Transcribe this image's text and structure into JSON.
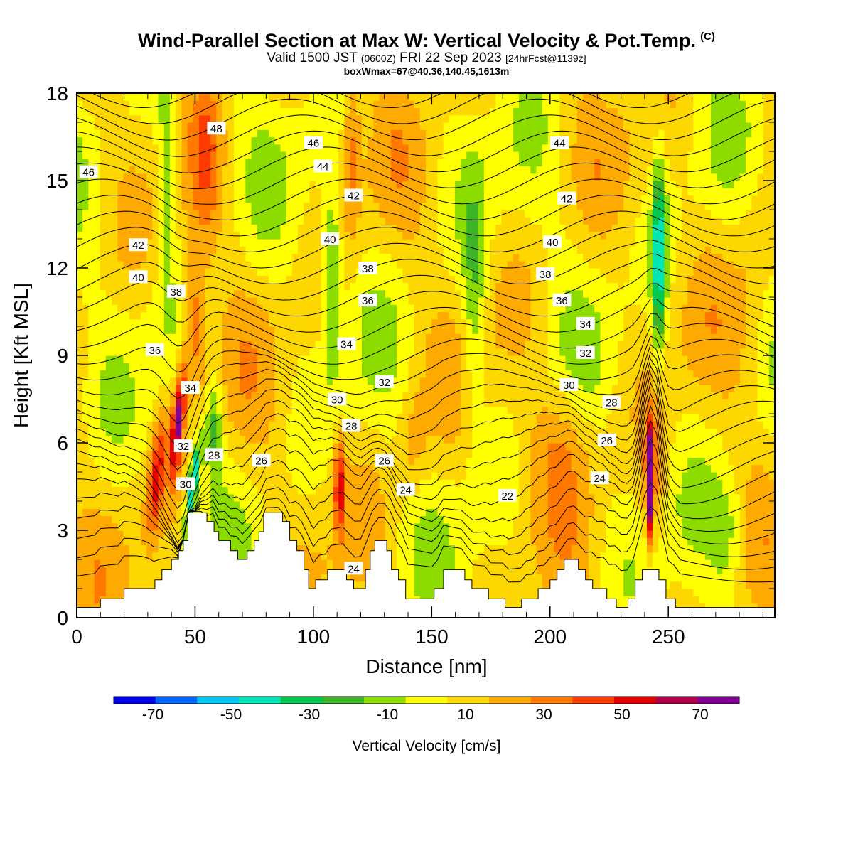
{
  "title": {
    "main": "Wind-Parallel Section at Max W: Vertical Velocity & Pot.Temp.",
    "main_mark": "(C)",
    "valid_prefix": "Valid 1500 JST",
    "valid_utc": "(0600Z)",
    "valid_date": "FRI 22 Sep 2023",
    "forecast": "[24hrFcst@1139z]",
    "box_info": "boxWmax=67@40.36,140.45,1613m"
  },
  "chart_data": {
    "type": "heatmap",
    "xlabel": "Distance [nm]",
    "ylabel": "Height [Kft MSL]",
    "xlim": [
      0,
      295
    ],
    "ylim": [
      0,
      18
    ],
    "x_ticks": [
      0,
      50,
      100,
      150,
      200,
      250
    ],
    "y_ticks": [
      0,
      3,
      6,
      9,
      12,
      15,
      18
    ],
    "colorbar": {
      "label": "Vertical Velocity [cm/s]",
      "range": [
        -80,
        80
      ],
      "step": 10,
      "tick_values": [
        -70,
        -50,
        -30,
        -10,
        10,
        30,
        50,
        70
      ],
      "colors": [
        "#0000f0",
        "#0064ff",
        "#00c8f5",
        "#00e6b4",
        "#00c850",
        "#3cb428",
        "#8cdc00",
        "#ffff00",
        "#ffd700",
        "#ffaa00",
        "#ff7800",
        "#ff3c00",
        "#e60000",
        "#b4004b",
        "#820096"
      ]
    },
    "terrain_kft": [
      [
        0,
        0.35
      ],
      [
        10,
        0.35
      ],
      [
        10,
        0.65
      ],
      [
        20,
        0.65
      ],
      [
        20,
        1.0
      ],
      [
        33,
        1.0
      ],
      [
        33,
        1.3
      ],
      [
        36,
        1.3
      ],
      [
        36,
        1.65
      ],
      [
        40,
        1.65
      ],
      [
        40,
        2.0
      ],
      [
        43,
        2.0
      ],
      [
        43,
        2.3
      ],
      [
        45,
        2.3
      ],
      [
        45,
        2.65
      ],
      [
        47,
        2.65
      ],
      [
        47,
        3.6
      ],
      [
        55,
        3.6
      ],
      [
        55,
        3.3
      ],
      [
        58,
        3.3
      ],
      [
        58,
        2.95
      ],
      [
        60,
        2.95
      ],
      [
        60,
        2.65
      ],
      [
        65,
        2.65
      ],
      [
        65,
        2.3
      ],
      [
        68,
        2.3
      ],
      [
        68,
        2.0
      ],
      [
        72,
        2.0
      ],
      [
        72,
        2.3
      ],
      [
        75,
        2.3
      ],
      [
        75,
        2.65
      ],
      [
        77,
        2.65
      ],
      [
        77,
        2.95
      ],
      [
        79,
        2.95
      ],
      [
        79,
        3.6
      ],
      [
        87,
        3.6
      ],
      [
        87,
        3.3
      ],
      [
        90,
        3.3
      ],
      [
        90,
        2.65
      ],
      [
        93,
        2.65
      ],
      [
        93,
        2.3
      ],
      [
        96,
        2.3
      ],
      [
        96,
        1.65
      ],
      [
        98,
        1.65
      ],
      [
        98,
        1.0
      ],
      [
        101,
        1.0
      ],
      [
        101,
        1.3
      ],
      [
        106,
        1.3
      ],
      [
        106,
        1.65
      ],
      [
        114,
        1.65
      ],
      [
        114,
        1.3
      ],
      [
        117,
        1.3
      ],
      [
        117,
        1.0
      ],
      [
        122,
        1.0
      ],
      [
        122,
        1.65
      ],
      [
        124,
        1.65
      ],
      [
        124,
        2.3
      ],
      [
        126,
        2.3
      ],
      [
        126,
        2.65
      ],
      [
        131,
        2.65
      ],
      [
        131,
        2.3
      ],
      [
        133,
        2.3
      ],
      [
        133,
        1.65
      ],
      [
        136,
        1.65
      ],
      [
        136,
        1.3
      ],
      [
        139,
        1.3
      ],
      [
        139,
        0.65
      ],
      [
        151,
        0.65
      ],
      [
        151,
        1.0
      ],
      [
        155,
        1.0
      ],
      [
        155,
        1.65
      ],
      [
        164,
        1.65
      ],
      [
        164,
        1.3
      ],
      [
        167,
        1.3
      ],
      [
        167,
        1.0
      ],
      [
        174,
        1.0
      ],
      [
        174,
        0.65
      ],
      [
        181,
        0.65
      ],
      [
        181,
        0.35
      ],
      [
        188,
        0.35
      ],
      [
        188,
        0.65
      ],
      [
        195,
        0.65
      ],
      [
        195,
        1.0
      ],
      [
        200,
        1.0
      ],
      [
        200,
        1.3
      ],
      [
        203,
        1.3
      ],
      [
        203,
        1.65
      ],
      [
        206,
        1.65
      ],
      [
        206,
        2.0
      ],
      [
        212,
        2.0
      ],
      [
        212,
        1.65
      ],
      [
        215,
        1.65
      ],
      [
        215,
        1.3
      ],
      [
        218,
        1.3
      ],
      [
        218,
        1.0
      ],
      [
        224,
        1.0
      ],
      [
        224,
        0.65
      ],
      [
        228,
        0.65
      ],
      [
        228,
        0.35
      ],
      [
        233,
        0.35
      ],
      [
        233,
        0.65
      ],
      [
        236,
        0.65
      ],
      [
        236,
        1.3
      ],
      [
        239,
        1.3
      ],
      [
        239,
        1.65
      ],
      [
        246,
        1.65
      ],
      [
        246,
        1.3
      ],
      [
        249,
        1.3
      ],
      [
        249,
        0.65
      ],
      [
        253,
        0.65
      ],
      [
        253,
        0.35
      ],
      [
        295,
        0.35
      ]
    ],
    "theta_labels": [
      {
        "value": "48",
        "x": 59,
        "y": 16.8
      },
      {
        "value": "46",
        "x": 5,
        "y": 15.3
      },
      {
        "value": "46",
        "x": 100,
        "y": 16.3
      },
      {
        "value": "44",
        "x": 104,
        "y": 15.5
      },
      {
        "value": "44",
        "x": 204,
        "y": 16.3
      },
      {
        "value": "42",
        "x": 117,
        "y": 14.5
      },
      {
        "value": "42",
        "x": 207,
        "y": 14.4
      },
      {
        "value": "42",
        "x": 26,
        "y": 12.8
      },
      {
        "value": "40",
        "x": 107,
        "y": 13.0
      },
      {
        "value": "40",
        "x": 201,
        "y": 12.9
      },
      {
        "value": "40",
        "x": 26,
        "y": 11.7
      },
      {
        "value": "38",
        "x": 42,
        "y": 11.2
      },
      {
        "value": "38",
        "x": 123,
        "y": 12.0
      },
      {
        "value": "38",
        "x": 198,
        "y": 11.8
      },
      {
        "value": "36",
        "x": 123,
        "y": 10.9
      },
      {
        "value": "36",
        "x": 205,
        "y": 10.9
      },
      {
        "value": "36",
        "x": 33,
        "y": 9.2
      },
      {
        "value": "34",
        "x": 215,
        "y": 10.1
      },
      {
        "value": "34",
        "x": 114,
        "y": 9.4
      },
      {
        "value": "34",
        "x": 48,
        "y": 7.9
      },
      {
        "value": "32",
        "x": 215,
        "y": 9.1
      },
      {
        "value": "32",
        "x": 130,
        "y": 8.1
      },
      {
        "value": "32",
        "x": 45,
        "y": 5.9
      },
      {
        "value": "30",
        "x": 208,
        "y": 8.0
      },
      {
        "value": "30",
        "x": 110,
        "y": 7.5
      },
      {
        "value": "30",
        "x": 46,
        "y": 4.6
      },
      {
        "value": "28",
        "x": 226,
        "y": 7.4
      },
      {
        "value": "28",
        "x": 116,
        "y": 6.6
      },
      {
        "value": "28",
        "x": 58,
        "y": 5.6
      },
      {
        "value": "26",
        "x": 224,
        "y": 6.1
      },
      {
        "value": "26",
        "x": 130,
        "y": 5.4
      },
      {
        "value": "26",
        "x": 78,
        "y": 5.4
      },
      {
        "value": "24",
        "x": 221,
        "y": 4.8
      },
      {
        "value": "24",
        "x": 139,
        "y": 4.4
      },
      {
        "value": "24",
        "x": 117,
        "y": 1.7
      },
      {
        "value": "22",
        "x": 182,
        "y": 4.2
      }
    ]
  }
}
